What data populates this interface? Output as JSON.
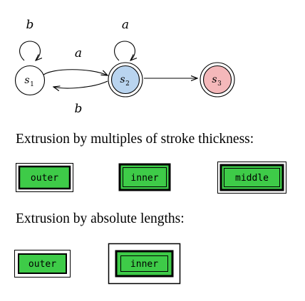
{
  "automaton": {
    "states": [
      {
        "id": "s1",
        "base": "s",
        "sub": "1",
        "fill": "#ffffff",
        "accepting": false
      },
      {
        "id": "s2",
        "base": "s",
        "sub": "2",
        "fill": "#b9d4ef",
        "accepting": false
      },
      {
        "id": "s3",
        "base": "s",
        "sub": "3",
        "fill": "#f4b8ba",
        "accepting": true
      }
    ],
    "self_loops": [
      {
        "state": "s1",
        "label": "b"
      },
      {
        "state": "s2",
        "label": "a"
      }
    ],
    "edges": [
      {
        "from": "s1",
        "to": "s2",
        "label": "a"
      },
      {
        "from": "s2",
        "to": "s1",
        "label": "b"
      },
      {
        "from": "s2",
        "to": "s3",
        "label": ""
      }
    ]
  },
  "section1": {
    "caption": "Extrusion by multiples of stroke thickness:",
    "boxes": [
      {
        "label": "outer"
      },
      {
        "label": "inner"
      },
      {
        "label": "middle"
      }
    ]
  },
  "section2": {
    "caption": "Extrusion by absolute lengths:",
    "boxes": [
      {
        "label": "outer"
      },
      {
        "label": "inner"
      }
    ]
  },
  "colors": {
    "box_fill": "#3ecb48",
    "stroke": "#000000",
    "s2_fill": "#b9d4ef",
    "s3_fill": "#f4b8ba"
  }
}
